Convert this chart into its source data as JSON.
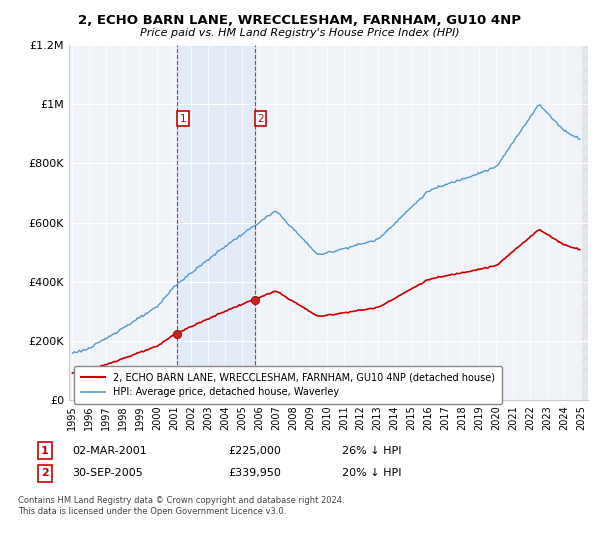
{
  "title": "2, ECHO BARN LANE, WRECCLESHAM, FARNHAM, GU10 4NP",
  "subtitle": "Price paid vs. HM Land Registry's House Price Index (HPI)",
  "ylim": [
    0,
    1200000
  ],
  "yticks": [
    0,
    200000,
    400000,
    600000,
    800000,
    1000000,
    1200000
  ],
  "ytick_labels": [
    "£0",
    "£200K",
    "£400K",
    "£600K",
    "£800K",
    "£1M",
    "£1.2M"
  ],
  "xstart_year": 1995,
  "xend_year": 2025,
  "purchase1_year": 2001.17,
  "purchase1_price": 225000,
  "purchase1_label": "1",
  "purchase1_date": "02-MAR-2001",
  "purchase1_price_str": "£225,000",
  "purchase1_pct": "26% ↓ HPI",
  "purchase2_year": 2005.75,
  "purchase2_price": 339950,
  "purchase2_label": "2",
  "purchase2_date": "30-SEP-2005",
  "purchase2_price_str": "£339,950",
  "purchase2_pct": "20% ↓ HPI",
  "red_line_color": "#cc0000",
  "blue_line_color": "#5599cc",
  "vline_color": "#cc0000",
  "background_color": "#f0f4f8",
  "legend1_label": "2, ECHO BARN LANE, WRECCLESHAM, FARNHAM, GU10 4NP (detached house)",
  "legend2_label": "HPI: Average price, detached house, Waverley",
  "footer1": "Contains HM Land Registry data © Crown copyright and database right 2024.",
  "footer2": "This data is licensed under the Open Government Licence v3.0."
}
